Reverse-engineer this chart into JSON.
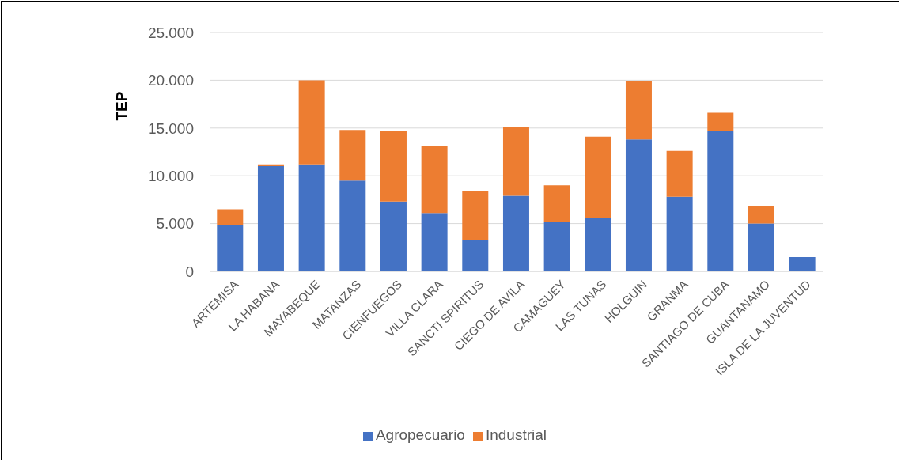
{
  "chart_data": {
    "type": "bar",
    "stacked": true,
    "ylabel": "TEP",
    "categories": [
      "ARTEMISA",
      "LA HABANA",
      "MAYABEQUE",
      "MATANZAS",
      "CIENFUEGOS",
      "VILLA CLARA",
      "SANCTI SPIRITUS",
      "CIEGO DE AVILA",
      "CAMAGUEY",
      "LAS TUNAS",
      "HOLGUIN",
      "GRANMA",
      "SANTIAGO DE CUBA",
      "GUANTANAMO",
      "ISLA DE LA JUVENTUD"
    ],
    "series": [
      {
        "name": "Agropecuario",
        "color": "#4472c4",
        "values": [
          4800,
          11000,
          11200,
          9500,
          7300,
          6100,
          3300,
          7900,
          5200,
          5600,
          13800,
          7800,
          14700,
          5000,
          1500
        ]
      },
      {
        "name": "Industrial",
        "color": "#ed7d31",
        "values": [
          1700,
          200,
          8800,
          5300,
          7400,
          7000,
          5100,
          7200,
          3800,
          8500,
          6100,
          4800,
          1900,
          1800,
          null
        ]
      }
    ],
    "ylim": [
      0,
      25000
    ],
    "yticks": [
      0,
      {
        "value": 5000,
        "label": "5.000"
      },
      {
        "value": 10000,
        "label": "10.000"
      },
      {
        "value": 15000,
        "label": "15.000"
      },
      {
        "value": 20000,
        "label": "20.000"
      },
      {
        "value": 25000,
        "label": "25.000"
      }
    ],
    "grid": "y",
    "legend": "bottom"
  }
}
